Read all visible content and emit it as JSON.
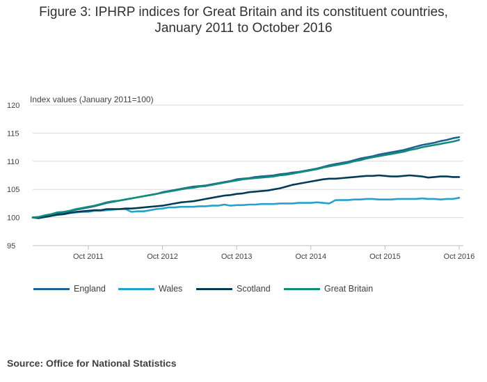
{
  "chart_data": {
    "type": "line",
    "title_line1": "Figure 3: IPHRP indices for Great Britain and its constituent countries,",
    "title_line2": "January 2011 to October 2016",
    "ylabel": "Index values (January 2011=100)",
    "xlabel": "",
    "ylim": [
      95,
      120
    ],
    "yticks": [
      "95",
      "100",
      "105",
      "110",
      "115",
      "120"
    ],
    "xticks": [
      {
        "label": "Oct 2011",
        "month": 9
      },
      {
        "label": "Oct 2012",
        "month": 21
      },
      {
        "label": "Oct 2013",
        "month": 33
      },
      {
        "label": "Oct 2014",
        "month": 45
      },
      {
        "label": "Oct 2015",
        "month": 57
      },
      {
        "label": "Oct 2016",
        "month": 69
      }
    ],
    "x_start": "January 2011",
    "x_end": "October 2016",
    "grid": true,
    "legend_position": "bottom",
    "series": [
      {
        "name": "England",
        "color": "#206095",
        "values": [
          100.0,
          100.1,
          100.3,
          100.5,
          100.8,
          100.9,
          101.1,
          101.4,
          101.6,
          101.8,
          102.0,
          102.3,
          102.6,
          102.8,
          103.0,
          103.2,
          103.4,
          103.6,
          103.8,
          104.0,
          104.2,
          104.5,
          104.7,
          104.9,
          105.1,
          105.3,
          105.5,
          105.6,
          105.7,
          105.9,
          106.1,
          106.3,
          106.5,
          106.8,
          106.9,
          107.0,
          107.2,
          107.3,
          107.4,
          107.5,
          107.7,
          107.8,
          108.0,
          108.1,
          108.3,
          108.5,
          108.7,
          109.0,
          109.3,
          109.5,
          109.7,
          109.9,
          110.2,
          110.5,
          110.7,
          110.9,
          111.2,
          111.4,
          111.6,
          111.8,
          112.0,
          112.3,
          112.6,
          112.9,
          113.1,
          113.3,
          113.6,
          113.8,
          114.1,
          114.3
        ]
      },
      {
        "name": "Wales",
        "color": "#27a0cc",
        "values": [
          100.0,
          99.9,
          100.1,
          100.3,
          100.5,
          100.6,
          100.8,
          100.9,
          101.0,
          101.0,
          101.2,
          101.2,
          101.3,
          101.4,
          101.5,
          101.5,
          101.0,
          101.1,
          101.1,
          101.3,
          101.5,
          101.6,
          101.8,
          101.8,
          101.9,
          101.9,
          101.9,
          102.0,
          102.0,
          102.1,
          102.1,
          102.3,
          102.1,
          102.2,
          102.2,
          102.3,
          102.3,
          102.4,
          102.4,
          102.4,
          102.5,
          102.5,
          102.5,
          102.6,
          102.6,
          102.6,
          102.7,
          102.6,
          102.5,
          103.1,
          103.1,
          103.1,
          103.2,
          103.2,
          103.3,
          103.3,
          103.2,
          103.2,
          103.2,
          103.3,
          103.3,
          103.3,
          103.3,
          103.4,
          103.3,
          103.3,
          103.2,
          103.3,
          103.3,
          103.5
        ]
      },
      {
        "name": "Scotland",
        "color": "#003c57",
        "values": [
          100.0,
          99.9,
          100.1,
          100.3,
          100.5,
          100.6,
          100.8,
          101.0,
          101.1,
          101.2,
          101.3,
          101.3,
          101.5,
          101.5,
          101.5,
          101.6,
          101.6,
          101.7,
          101.8,
          101.9,
          102.0,
          102.1,
          102.3,
          102.5,
          102.7,
          102.8,
          102.9,
          103.1,
          103.3,
          103.5,
          103.7,
          103.9,
          104.0,
          104.2,
          104.3,
          104.5,
          104.6,
          104.7,
          104.8,
          105.0,
          105.2,
          105.5,
          105.8,
          106.0,
          106.2,
          106.4,
          106.6,
          106.8,
          106.9,
          106.9,
          107.0,
          107.1,
          107.2,
          107.3,
          107.4,
          107.4,
          107.5,
          107.4,
          107.3,
          107.3,
          107.4,
          107.5,
          107.4,
          107.3,
          107.1,
          107.2,
          107.3,
          107.3,
          107.2,
          107.2
        ]
      },
      {
        "name": "Great Britain",
        "color": "#118c7b",
        "values": [
          100.0,
          100.1,
          100.4,
          100.6,
          100.9,
          101.0,
          101.2,
          101.5,
          101.7,
          101.9,
          102.1,
          102.4,
          102.7,
          102.9,
          103.0,
          103.2,
          103.4,
          103.6,
          103.8,
          104.0,
          104.2,
          104.4,
          104.6,
          104.8,
          105.0,
          105.2,
          105.3,
          105.5,
          105.6,
          105.8,
          106.0,
          106.2,
          106.4,
          106.6,
          106.8,
          106.9,
          107.0,
          107.1,
          107.2,
          107.3,
          107.5,
          107.6,
          107.8,
          108.0,
          108.2,
          108.4,
          108.6,
          108.9,
          109.1,
          109.3,
          109.5,
          109.7,
          110.0,
          110.2,
          110.5,
          110.7,
          110.9,
          111.1,
          111.3,
          111.5,
          111.7,
          112.0,
          112.2,
          112.5,
          112.7,
          112.9,
          113.1,
          113.3,
          113.5,
          113.8
        ]
      }
    ]
  },
  "source": "Source: Office for National Statistics"
}
